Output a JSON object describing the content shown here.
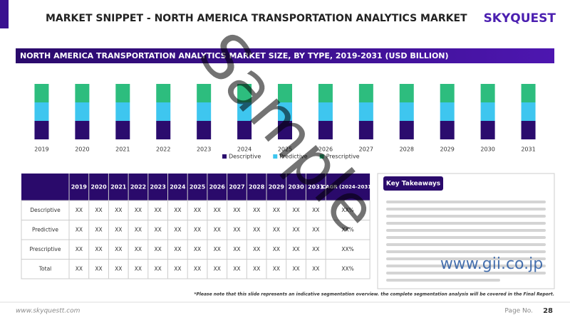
{
  "header": {
    "title": "MARKET SNIPPET - NORTH AMERICA TRANSPORTATION ANALYTICS MARKET",
    "logo": "SKYQUEST"
  },
  "chart_data": {
    "type": "bar",
    "stacked": true,
    "title": "NORTH AMERICA TRANSPORTATION ANALYTICS MARKET SIZE,  BY TYPE, 2019-2031 (USD BILLION)",
    "categories": [
      "2019",
      "2020",
      "2021",
      "2022",
      "2023",
      "2024",
      "2025",
      "2026",
      "2027",
      "2028",
      "2029",
      "2030",
      "2031"
    ],
    "series": [
      {
        "name": "Descriptive",
        "color": "#2b0c6e",
        "values": [
          1,
          1,
          1,
          1,
          1,
          1,
          1,
          1,
          1,
          1,
          1,
          1,
          1
        ]
      },
      {
        "name": "Predictive",
        "color": "#3ec6ef",
        "values": [
          1,
          1,
          1,
          1,
          1,
          1,
          1,
          1,
          1,
          1,
          1,
          1,
          1
        ]
      },
      {
        "name": "Prescriptive",
        "color": "#2dbd7e",
        "values": [
          1,
          1,
          1,
          1,
          1,
          1,
          1,
          1,
          1,
          1,
          1,
          1,
          1
        ]
      }
    ],
    "ylim": [
      0,
      3
    ],
    "legend": "bottom"
  },
  "table": {
    "header": [
      "2019",
      "2020",
      "2021",
      "2022",
      "2023",
      "2024",
      "2025",
      "2026",
      "2027",
      "2028",
      "2029",
      "2030",
      "2031",
      "CAGR (2024-2031)"
    ],
    "rows": [
      [
        "Descriptive",
        "XX",
        "XX",
        "XX",
        "XX",
        "XX",
        "XX",
        "XX",
        "XX",
        "XX",
        "XX",
        "XX",
        "XX",
        "XX",
        "XX%"
      ],
      [
        "Predictive",
        "XX",
        "XX",
        "XX",
        "XX",
        "XX",
        "XX",
        "XX",
        "XX",
        "XX",
        "XX",
        "XX",
        "XX",
        "XX",
        "XX%"
      ],
      [
        "Prescriptive",
        "XX",
        "XX",
        "XX",
        "XX",
        "XX",
        "XX",
        "XX",
        "XX",
        "XX",
        "XX",
        "XX",
        "XX",
        "XX",
        "XX%"
      ],
      [
        "Total",
        "XX",
        "XX",
        "XX",
        "XX",
        "XX",
        "XX",
        "XX",
        "XX",
        "XX",
        "XX",
        "XX",
        "XX",
        "XX",
        "XX%"
      ]
    ]
  },
  "takeaways": {
    "title": "Key Takeaways"
  },
  "footnote": "*Please note that this slide represents an indicative segmentation overview. the complete segmentation analysis will be covered in the Final Report.",
  "footer": {
    "url": "www.skyquestt.com",
    "page_label": "Page No.",
    "page_number": "28"
  },
  "watermark": {
    "text": "Sample",
    "site": "www.gii.co.jp"
  }
}
